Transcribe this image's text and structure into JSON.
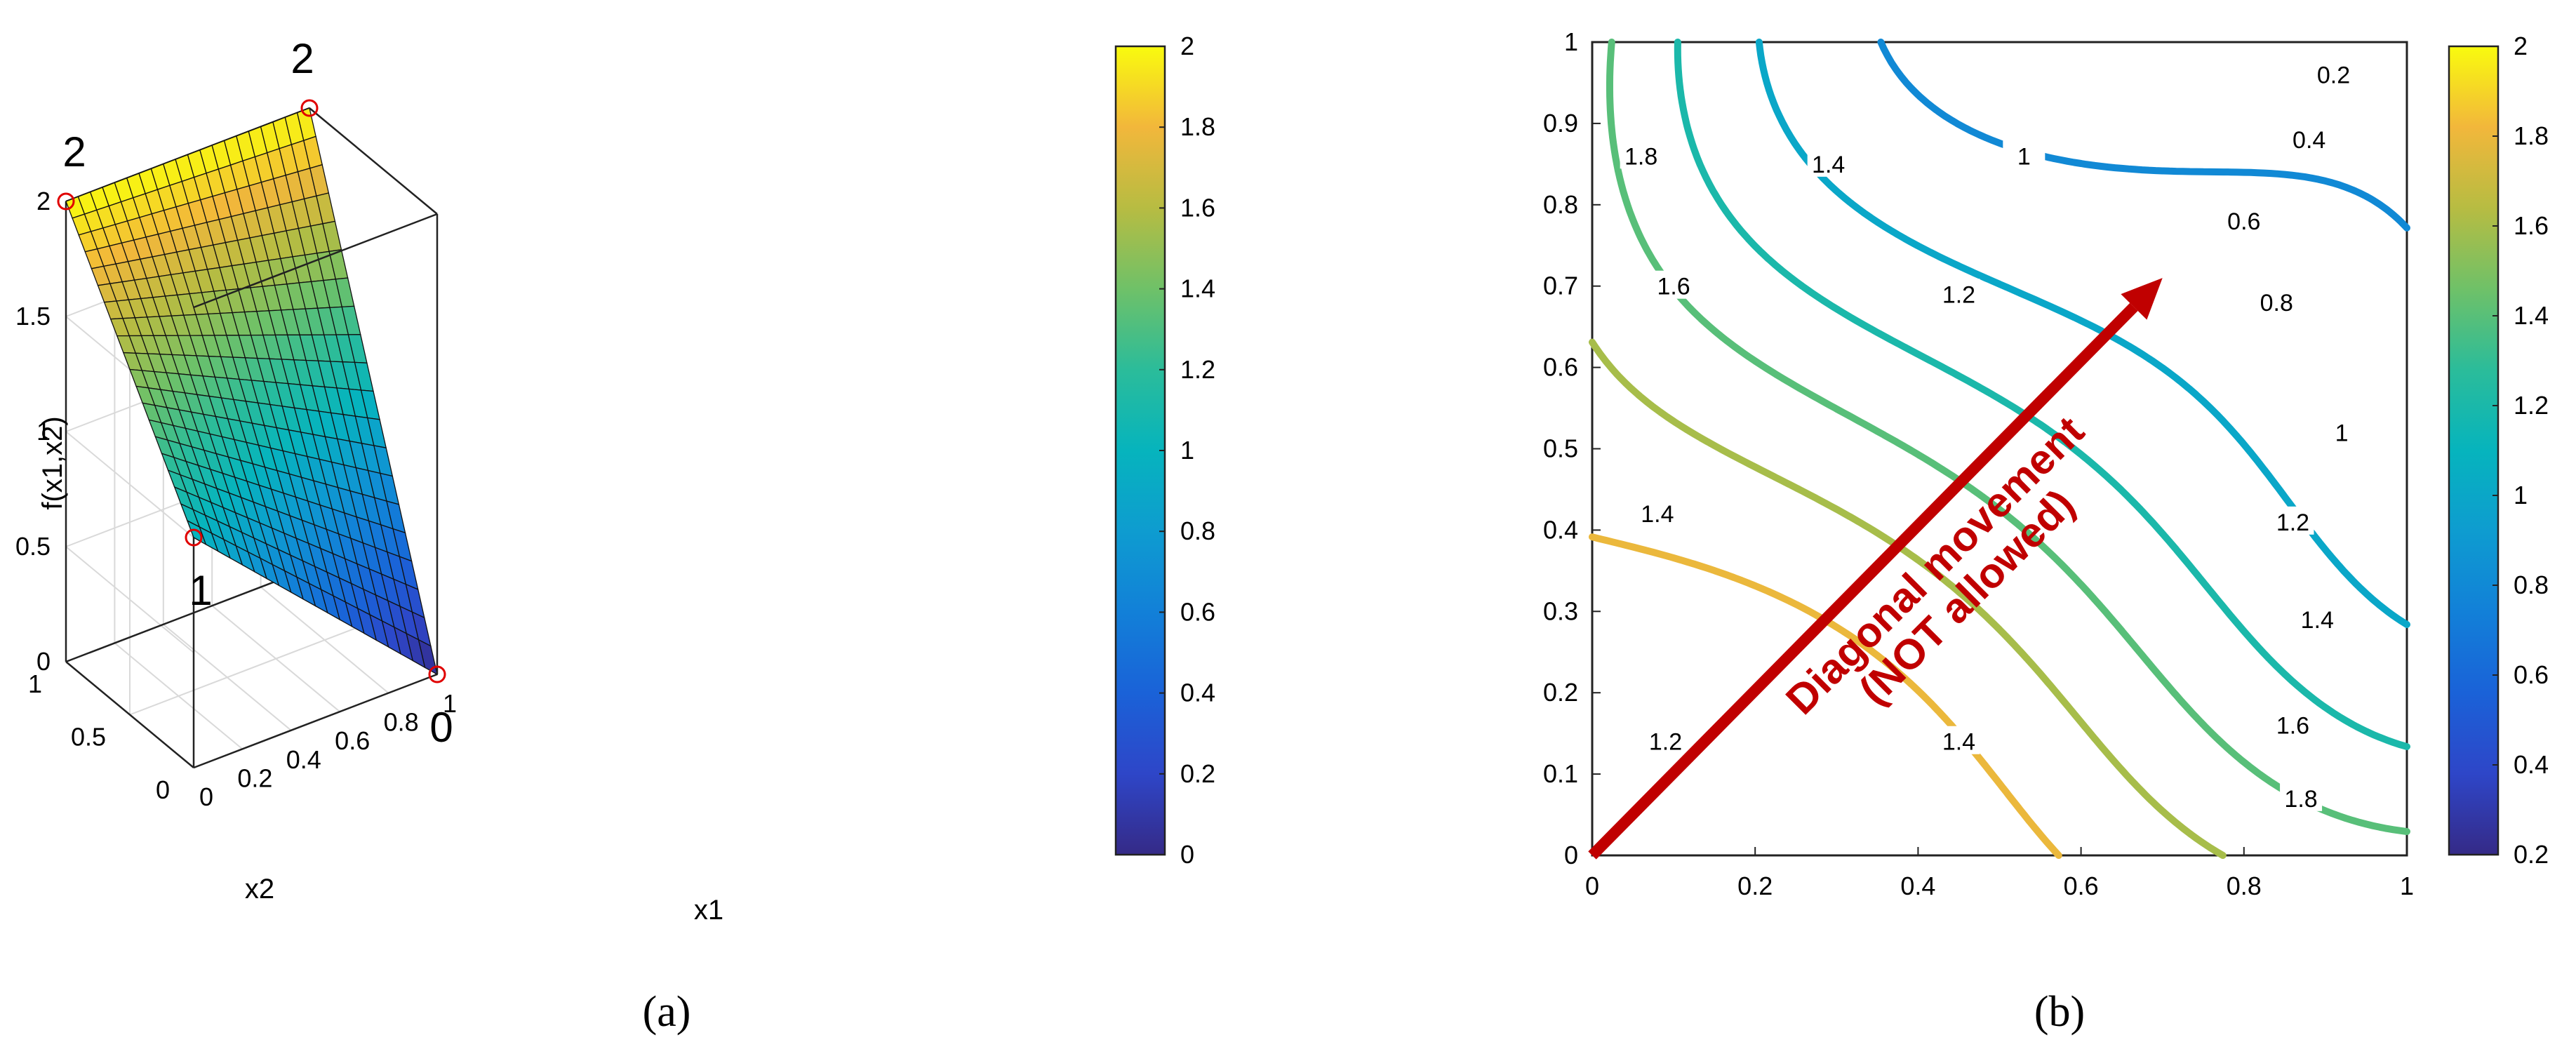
{
  "chart_data": [
    {
      "type": "surface",
      "panel_label": "(a)",
      "xlabel": "x1",
      "ylabel": "x2",
      "zlabel": "f(x1,x2)",
      "xlim": [
        0,
        1
      ],
      "ylim": [
        0,
        1
      ],
      "zlim": [
        0,
        2
      ],
      "xticks": [
        "0",
        "0.2",
        "0.4",
        "0.6",
        "0.8",
        "1"
      ],
      "yticks": [
        "0",
        "0.5",
        "1"
      ],
      "zticks": [
        "0",
        "0.5",
        "1",
        "1.5",
        "2"
      ],
      "grid": true,
      "corner_values": [
        {
          "x1": 0,
          "x2": 1,
          "value": 2,
          "label": "2"
        },
        {
          "x1": 1,
          "x2": 1,
          "value": 2,
          "label": "2"
        },
        {
          "x1": 0,
          "x2": 0,
          "value": 1,
          "label": "1"
        },
        {
          "x1": 1,
          "x2": 0,
          "value": 0,
          "label": "0"
        }
      ],
      "colorbar": {
        "range": [
          0,
          2
        ],
        "ticks": [
          "0",
          "0.2",
          "0.4",
          "0.6",
          "0.8",
          "1",
          "1.2",
          "1.4",
          "1.6",
          "1.8",
          "2"
        ]
      }
    },
    {
      "type": "contour",
      "panel_label": "(b)",
      "xlim": [
        0,
        1
      ],
      "ylim": [
        0,
        1
      ],
      "xticks": [
        "0",
        "0.2",
        "0.4",
        "0.6",
        "0.8",
        "1"
      ],
      "yticks": [
        "0",
        "0.1",
        "0.2",
        "0.3",
        "0.4",
        "0.5",
        "0.6",
        "0.7",
        "0.8",
        "0.9",
        "1"
      ],
      "levels": [
        0.2,
        0.4,
        0.6,
        0.8,
        1.0,
        1.2,
        1.4,
        1.6,
        1.8
      ],
      "contour_labels": [
        {
          "text": "1.8",
          "x": 0.06,
          "y": 0.86
        },
        {
          "text": "1.6",
          "x": 0.1,
          "y": 0.7
        },
        {
          "text": "1.4",
          "x": 0.29,
          "y": 0.85
        },
        {
          "text": "1",
          "x": 0.53,
          "y": 0.86
        },
        {
          "text": "1.2",
          "x": 0.45,
          "y": 0.69
        },
        {
          "text": "1.4",
          "x": 0.08,
          "y": 0.42
        },
        {
          "text": "1.2",
          "x": 0.09,
          "y": 0.14
        },
        {
          "text": "1.4",
          "x": 0.45,
          "y": 0.14
        },
        {
          "text": "0.2",
          "x": 0.91,
          "y": 0.96
        },
        {
          "text": "0.4",
          "x": 0.88,
          "y": 0.88
        },
        {
          "text": "0.6",
          "x": 0.8,
          "y": 0.78
        },
        {
          "text": "0.8",
          "x": 0.84,
          "y": 0.68
        },
        {
          "text": "1",
          "x": 0.92,
          "y": 0.52
        },
        {
          "text": "1.2",
          "x": 0.86,
          "y": 0.41
        },
        {
          "text": "1.4",
          "x": 0.89,
          "y": 0.29
        },
        {
          "text": "1.6",
          "x": 0.86,
          "y": 0.16
        },
        {
          "text": "1.8",
          "x": 0.87,
          "y": 0.07
        }
      ],
      "annotation": {
        "line1": "Diagonal movement",
        "line2": "(NOT allowed)",
        "color": "#c00000",
        "from": [
          0,
          0
        ],
        "to": [
          0.7,
          0.71
        ]
      },
      "colorbar": {
        "range": [
          0.2,
          2
        ],
        "ticks": [
          "0.2",
          "0.4",
          "0.6",
          "0.8",
          "1",
          "1.2",
          "1.4",
          "1.6",
          "1.8",
          "2"
        ]
      }
    }
  ]
}
